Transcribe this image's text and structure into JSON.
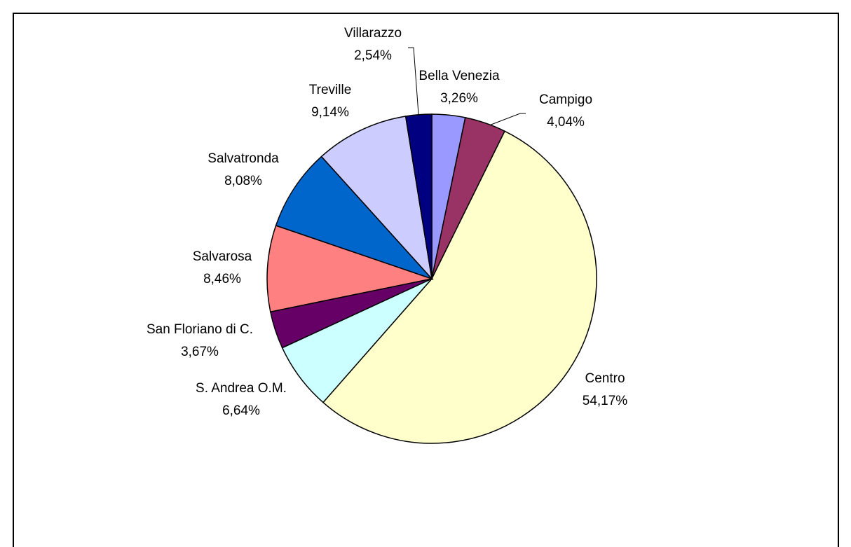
{
  "chart_data": {
    "type": "pie",
    "categories": [
      "Bella Venezia",
      "Campigo",
      "Centro",
      "S. Andrea O.M.",
      "San Floriano di C.",
      "Salvarosa",
      "Salvatronda",
      "Treville",
      "Villarazzo"
    ],
    "values": [
      3.26,
      4.04,
      54.17,
      6.64,
      3.67,
      8.46,
      8.08,
      9.14,
      2.54
    ],
    "value_labels": [
      "3,26%",
      "4,04%",
      "54,17%",
      "6,64%",
      "3,67%",
      "8,46%",
      "8,08%",
      "9,14%",
      "2,54%"
    ],
    "colors": [
      "#9999ff",
      "#993366",
      "#ffffcc",
      "#ccffff",
      "#660066",
      "#ff8080",
      "#0066cc",
      "#ccccff",
      "#000080"
    ]
  }
}
